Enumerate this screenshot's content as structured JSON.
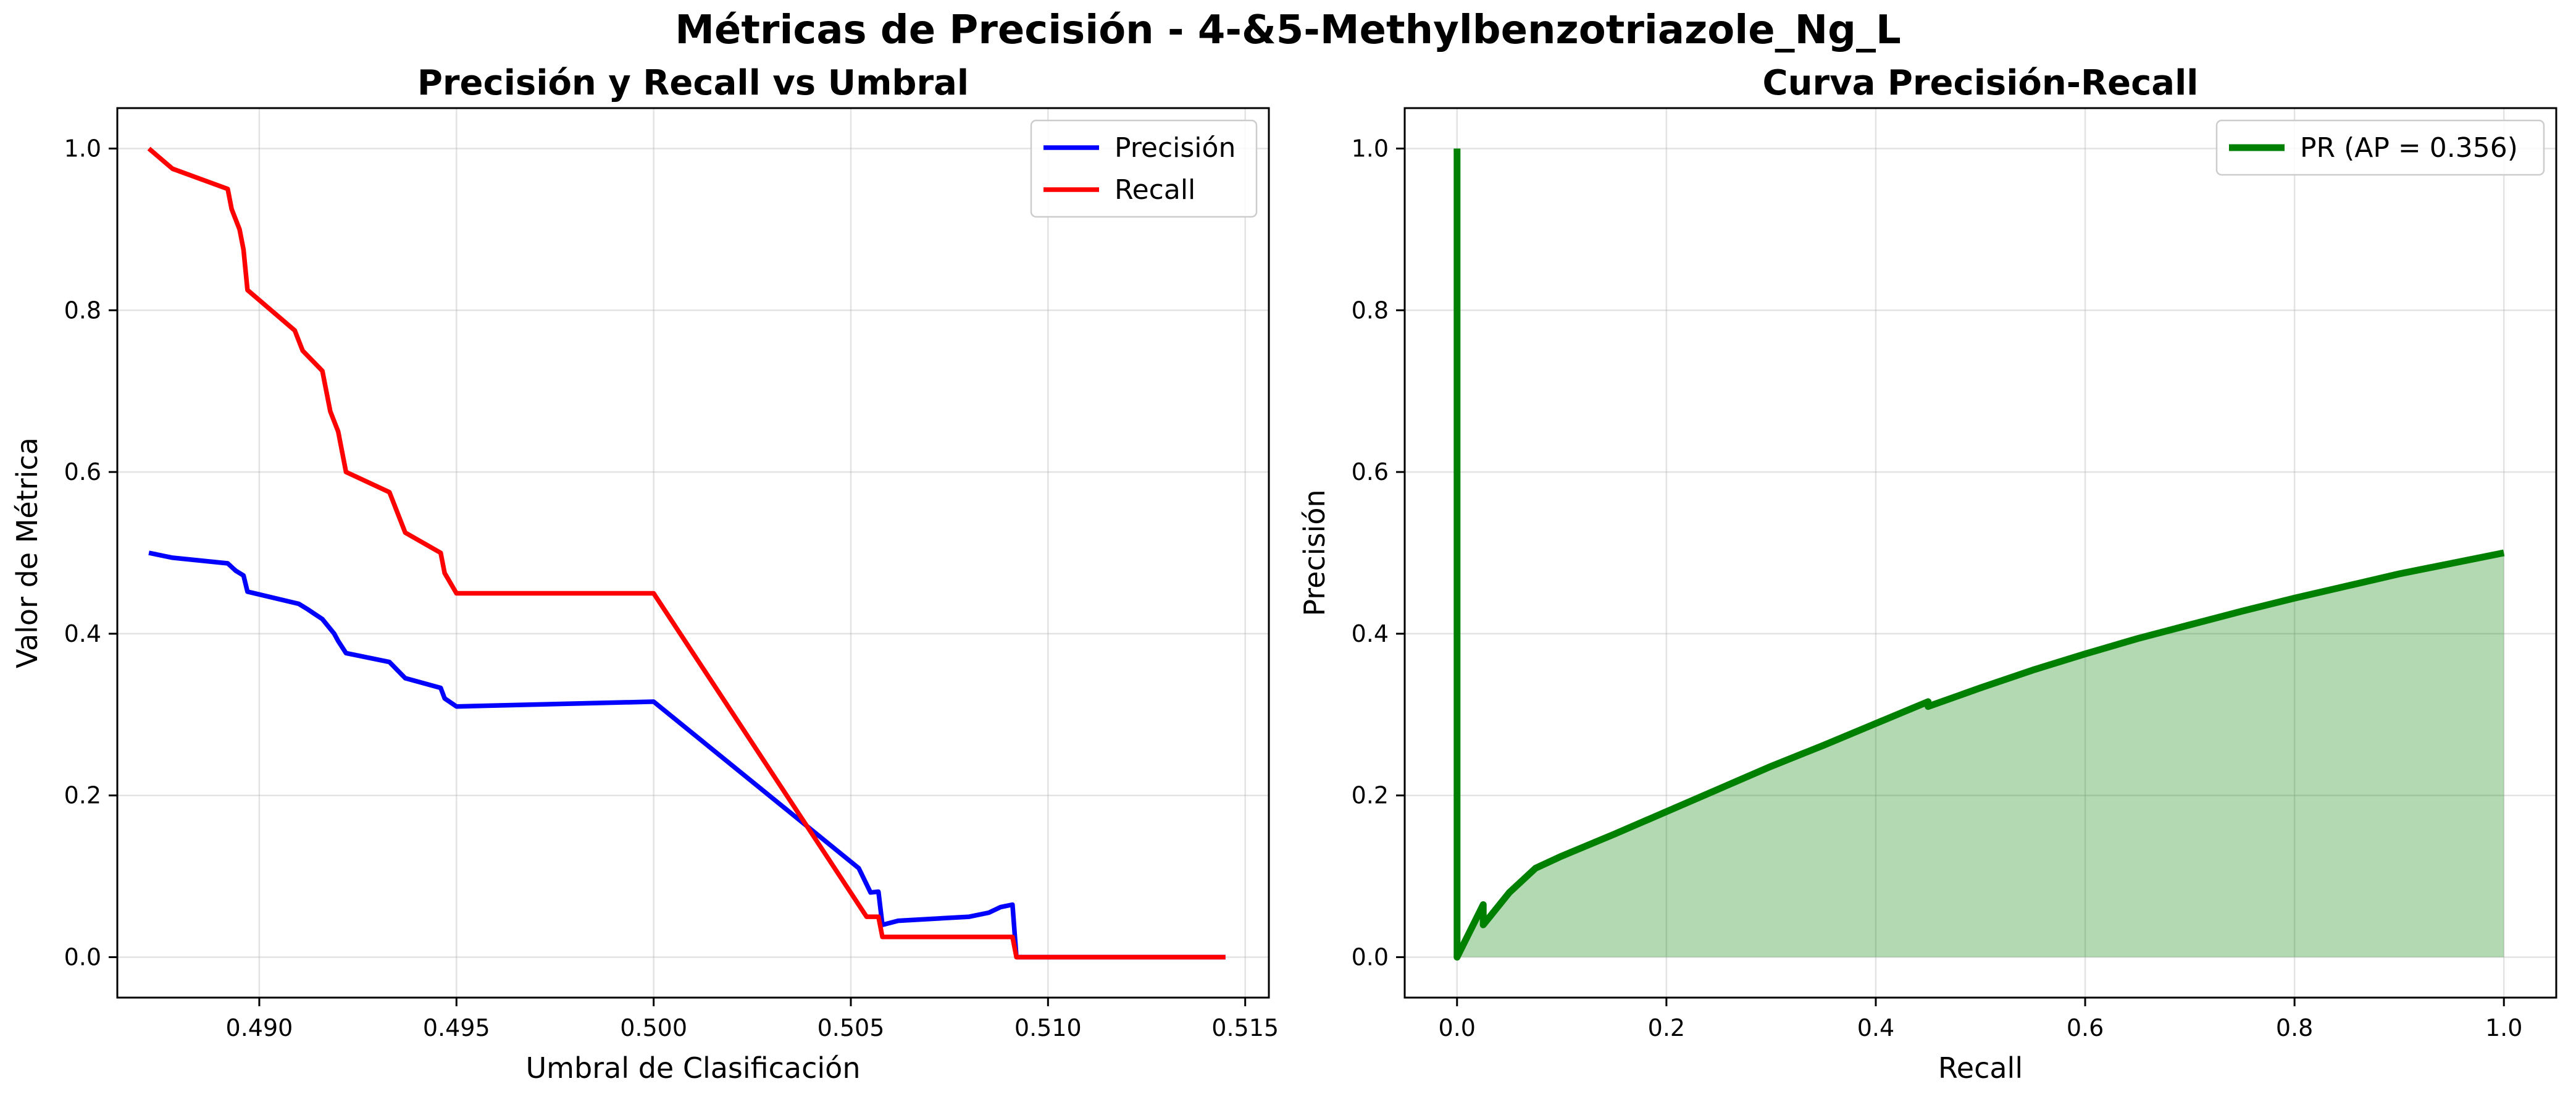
{
  "figure": {
    "title": "Métricas de Precisión - 4-&5-Methylbenzotriazole_Ng_L"
  },
  "chart_data": [
    {
      "type": "line",
      "title": "Precisión y Recall vs Umbral",
      "xlabel": "Umbral de Clasificación",
      "ylabel": "Valor de Métrica",
      "xlim": [
        0.4864,
        0.5156
      ],
      "ylim": [
        -0.05,
        1.05
      ],
      "xticks": [
        0.49,
        0.495,
        0.5,
        0.505,
        0.51,
        0.515
      ],
      "xtick_labels": [
        "0.490",
        "0.495",
        "0.500",
        "0.505",
        "0.510",
        "0.515"
      ],
      "yticks": [
        0.0,
        0.2,
        0.4,
        0.6,
        0.8,
        1.0
      ],
      "ytick_labels": [
        "0.0",
        "0.2",
        "0.4",
        "0.6",
        "0.8",
        "1.0"
      ],
      "grid": true,
      "legend_position": "top-right",
      "series": [
        {
          "name": "Precisión",
          "color": "#0000ff",
          "x": [
            0.4872,
            0.4878,
            0.4892,
            0.4894,
            0.4896,
            0.4897,
            0.491,
            0.4912,
            0.4916,
            0.4919,
            0.492,
            0.4922,
            0.4933,
            0.4937,
            0.4946,
            0.4947,
            0.495,
            0.5,
            0.5052,
            0.5055,
            0.5057,
            0.5058,
            0.5062,
            0.508,
            0.5085,
            0.5088,
            0.5091,
            0.5092,
            0.5095,
            0.5145
          ],
          "y": [
            0.5,
            0.494,
            0.487,
            0.478,
            0.472,
            0.452,
            0.437,
            0.431,
            0.418,
            0.4,
            0.391,
            0.376,
            0.365,
            0.345,
            0.333,
            0.32,
            0.31,
            0.316,
            0.11,
            0.08,
            0.081,
            0.04,
            0.045,
            0.05,
            0.055,
            0.062,
            0.065,
            0.0,
            0.0,
            0.0
          ]
        },
        {
          "name": "Recall",
          "color": "#ff0000",
          "x": [
            0.4872,
            0.4878,
            0.4892,
            0.4893,
            0.4895,
            0.4896,
            0.4897,
            0.4909,
            0.4911,
            0.4916,
            0.4918,
            0.492,
            0.4922,
            0.4933,
            0.4937,
            0.4946,
            0.4947,
            0.495,
            0.5,
            0.5054,
            0.5057,
            0.5058,
            0.5091,
            0.5092,
            0.5145
          ],
          "y": [
            1.0,
            0.975,
            0.95,
            0.925,
            0.9,
            0.875,
            0.825,
            0.775,
            0.75,
            0.725,
            0.675,
            0.65,
            0.6,
            0.575,
            0.525,
            0.5,
            0.475,
            0.45,
            0.45,
            0.05,
            0.05,
            0.025,
            0.025,
            0.0,
            0.0
          ]
        }
      ]
    },
    {
      "type": "area",
      "title": "Curva Precisión-Recall",
      "xlabel": "Recall",
      "ylabel": "Precisión",
      "xlim": [
        -0.05,
        1.05
      ],
      "ylim": [
        -0.05,
        1.05
      ],
      "xticks": [
        0.0,
        0.2,
        0.4,
        0.6,
        0.8,
        1.0
      ],
      "xtick_labels": [
        "0.0",
        "0.2",
        "0.4",
        "0.6",
        "0.8",
        "1.0"
      ],
      "yticks": [
        0.0,
        0.2,
        0.4,
        0.6,
        0.8,
        1.0
      ],
      "ytick_labels": [
        "0.0",
        "0.2",
        "0.4",
        "0.6",
        "0.8",
        "1.0"
      ],
      "grid": true,
      "legend_position": "top-right",
      "fill_color": "#008000",
      "series": [
        {
          "name": "PR (AP = 0.356)",
          "color": "#008000",
          "x": [
            0.0,
            0.0,
            0.0,
            0.025,
            0.025,
            0.05,
            0.075,
            0.1,
            0.15,
            0.2,
            0.25,
            0.3,
            0.35,
            0.4,
            0.45,
            0.45,
            0.5,
            0.55,
            0.6,
            0.65,
            0.7,
            0.75,
            0.8,
            0.85,
            0.9,
            0.95,
            1.0
          ],
          "y": [
            1.0,
            0.0,
            0.0,
            0.065,
            0.04,
            0.08,
            0.11,
            0.125,
            0.152,
            0.18,
            0.208,
            0.236,
            0.262,
            0.289,
            0.316,
            0.31,
            0.333,
            0.355,
            0.375,
            0.394,
            0.411,
            0.428,
            0.444,
            0.459,
            0.474,
            0.487,
            0.5
          ]
        }
      ]
    }
  ]
}
